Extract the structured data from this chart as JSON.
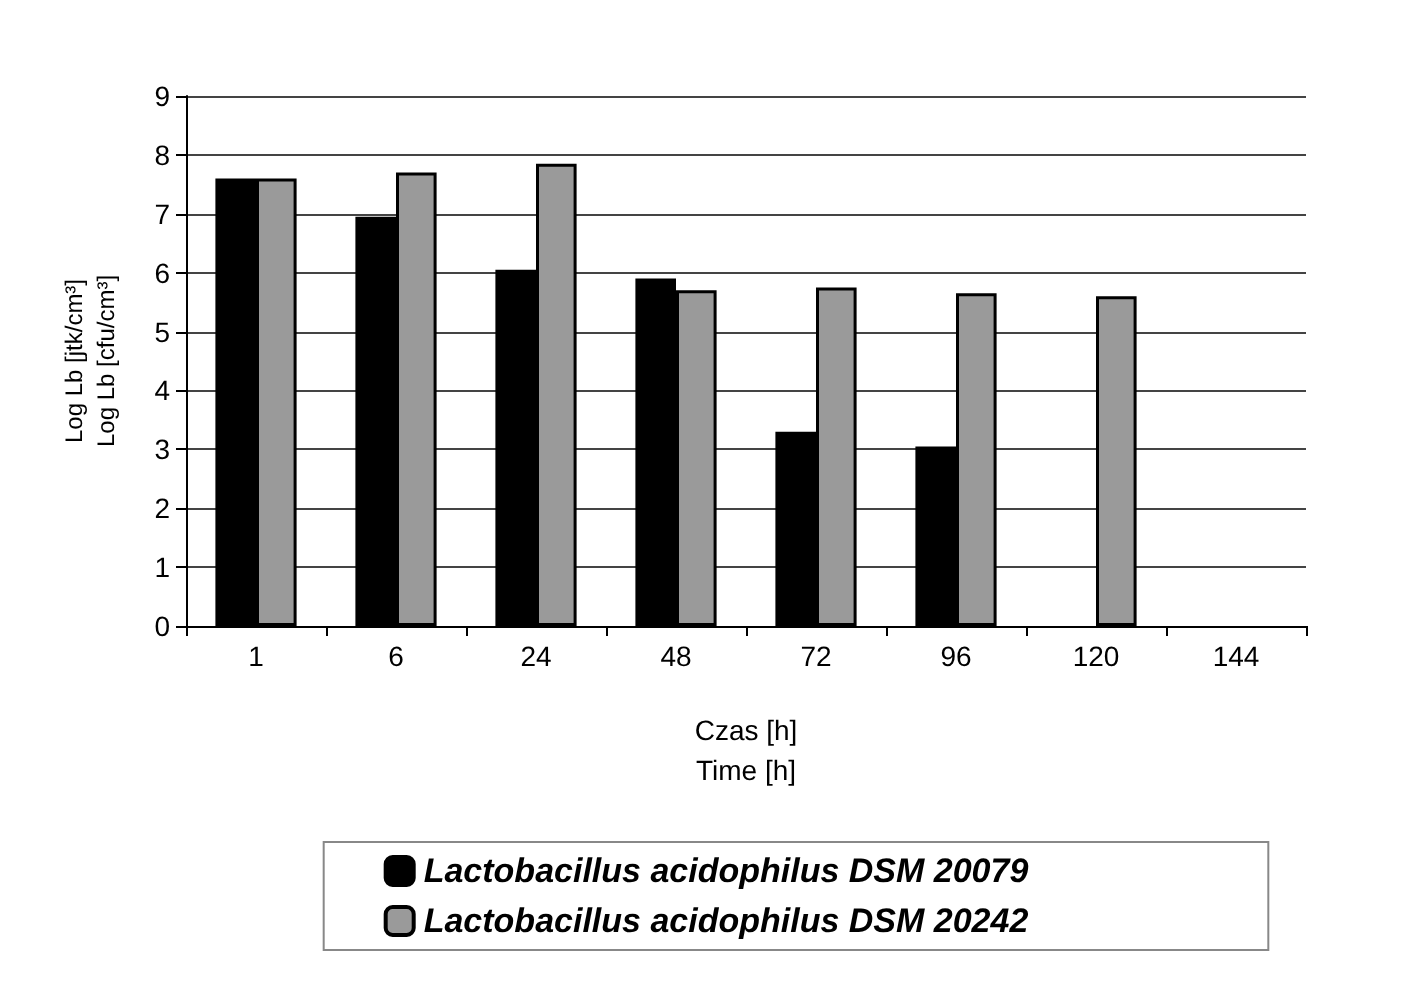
{
  "chart_data": {
    "type": "bar",
    "xlabel": "Czas [h]\nTime [h]",
    "ylabel": "Log Lb [jtk/cm³]\nLog Lb [cfu/cm³]",
    "categories": [
      "1",
      "6",
      "24",
      "48",
      "72",
      "96",
      "120",
      "144"
    ],
    "series": [
      {
        "name": "Lactobacillus acidophilus DSM 20079",
        "color": "#000000",
        "values": [
          7.6,
          6.95,
          6.05,
          5.9,
          3.3,
          3.05,
          null,
          null
        ]
      },
      {
        "name": "Lactobacillus acidophilus DSM 20242",
        "color": "#9a9a9a",
        "values": [
          7.6,
          7.7,
          7.85,
          5.7,
          5.75,
          5.65,
          5.6,
          null
        ]
      }
    ],
    "ylim": [
      0,
      9
    ],
    "yticks": [
      0,
      1,
      2,
      3,
      4,
      5,
      6,
      7,
      8,
      9
    ],
    "grid": "y",
    "legend": "bottom"
  }
}
